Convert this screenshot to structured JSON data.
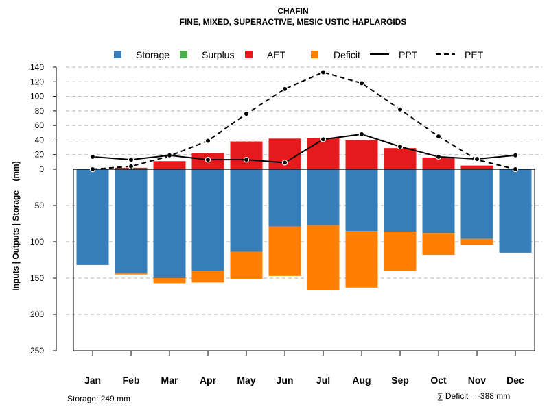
{
  "chart_data": {
    "type": "bar",
    "title": "CHAFIN",
    "subtitle": "FINE, MIXED, SUPERACTIVE, MESIC USTIC HAPLARGIDS",
    "ylabel": "Inputs | Outputs | Storage    (mm)",
    "categories": [
      "Jan",
      "Feb",
      "Mar",
      "Apr",
      "May",
      "Jun",
      "Jul",
      "Aug",
      "Sep",
      "Oct",
      "Nov",
      "Dec"
    ],
    "y_ticks_top": [
      "140",
      "120",
      "100",
      "80",
      "60",
      "40",
      "20",
      "0"
    ],
    "y_ticks_bottom": [
      "50",
      "100",
      "150",
      "200",
      "250"
    ],
    "ylim_top": [
      0,
      140
    ],
    "ylim_bottom": [
      0,
      250
    ],
    "legend": {
      "storage": "Storage",
      "surplus": "Surplus",
      "aet": "AET",
      "deficit": "Deficit",
      "ppt": "PPT",
      "pet": "PET"
    },
    "colors": {
      "storage": "#377EB8",
      "surplus": "#4DAF4A",
      "aet": "#E41A1C",
      "deficit": "#FF7F00"
    },
    "series": [
      {
        "name": "Storage",
        "values": [
          132,
          143,
          150,
          140,
          114,
          79,
          77,
          85,
          86,
          88,
          96,
          115
        ]
      },
      {
        "name": "Deficit",
        "values": [
          0,
          2,
          7,
          16,
          37,
          68,
          90,
          78,
          54,
          30,
          8,
          0
        ]
      },
      {
        "name": "AET",
        "values": [
          0,
          2,
          11,
          22,
          38,
          42,
          43,
          40,
          29,
          16,
          5,
          0
        ]
      },
      {
        "name": "Surplus",
        "values": [
          0,
          0,
          0,
          0,
          0,
          0,
          0,
          0,
          0,
          0,
          0,
          0
        ]
      },
      {
        "name": "PPT",
        "values": [
          17,
          13,
          19,
          13,
          13,
          9,
          41,
          48,
          31,
          17,
          14,
          19
        ]
      },
      {
        "name": "PET",
        "values": [
          0,
          4,
          18,
          39,
          76,
          110,
          133,
          118,
          82,
          45,
          13,
          0
        ]
      }
    ],
    "footer_storage": "Storage: 249 mm",
    "footer_deficit": "∑ Deficit = -388 mm"
  }
}
